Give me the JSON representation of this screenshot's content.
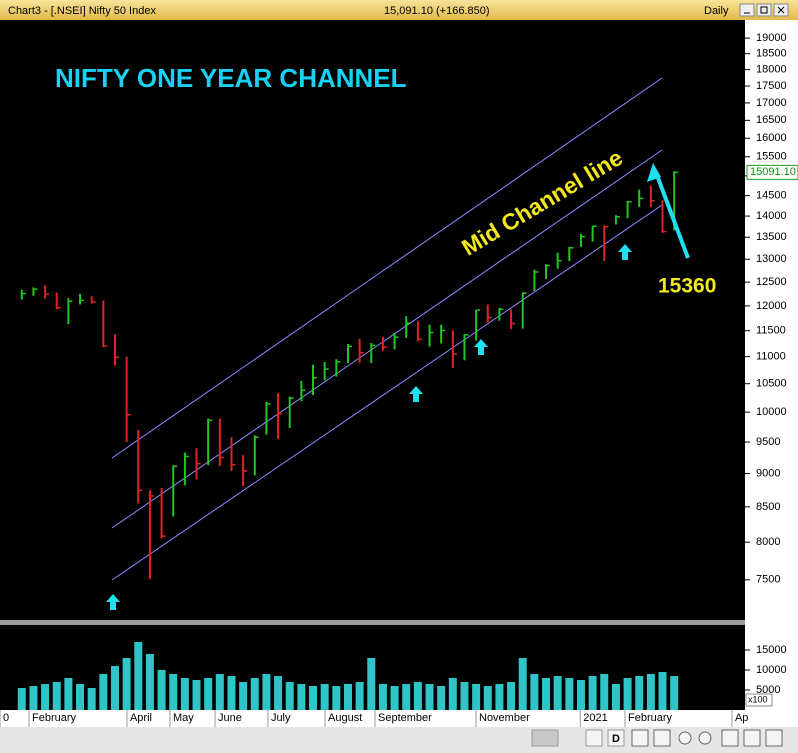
{
  "window": {
    "title": "Chart3 - [.NSEI] Nifty 50 Index",
    "quote": "15,091.10 (+166.850)",
    "period": "Daily",
    "period_button": "D"
  },
  "chart_data": [
    {
      "type": "ohlc",
      "title": "NIFTY ONE YEAR CHANNEL",
      "annotations": [
        "Mid Channel line",
        "15360"
      ],
      "x": [
        0,
        1,
        2,
        3,
        4,
        5,
        6,
        7,
        8,
        9,
        10,
        11,
        12,
        13,
        14,
        15,
        16,
        17,
        18,
        19,
        20,
        21,
        22,
        23,
        24,
        25,
        26,
        27,
        28,
        29,
        30,
        31,
        32,
        33,
        34,
        35,
        36,
        37,
        38,
        39,
        40,
        41,
        42,
        43,
        44,
        45,
        46,
        47,
        48,
        49,
        50,
        51,
        52,
        53,
        54,
        55,
        56
      ],
      "high": [
        12340,
        12390,
        12430,
        12280,
        12160,
        12250,
        12200,
        12110,
        11430,
        11000,
        9700,
        8750,
        8780,
        9130,
        9330,
        9400,
        9890,
        9890,
        9580,
        9290,
        9610,
        10180,
        10330,
        10270,
        10550,
        10850,
        10900,
        10950,
        11240,
        11340,
        11260,
        11380,
        11460,
        11790,
        11690,
        11620,
        11620,
        11510,
        11430,
        11920,
        12030,
        11960,
        11930,
        12280,
        12770,
        12890,
        13150,
        13280,
        13580,
        13770,
        13780,
        14020,
        14370,
        14650,
        14750,
        14390,
        15120
      ],
      "low": [
        12130,
        12210,
        12150,
        11930,
        11630,
        12030,
        12050,
        11180,
        10830,
        9500,
        8550,
        7511,
        8055,
        8360,
        8820,
        8910,
        9130,
        9120,
        9040,
        8810,
        8970,
        9620,
        9550,
        9730,
        10190,
        10300,
        10560,
        10630,
        10880,
        10880,
        10880,
        11110,
        11140,
        11360,
        11290,
        11190,
        11250,
        10790,
        10930,
        11310,
        11660,
        11700,
        11530,
        11540,
        12310,
        12570,
        12790,
        12960,
        13280,
        13400,
        12960,
        13800,
        13950,
        14220,
        14220,
        13600,
        13660
      ],
      "close": [
        12256,
        12352,
        12248,
        11962,
        12098,
        12113,
        12080,
        11202,
        10990,
        9955,
        8745,
        8660,
        8084,
        9112,
        9267,
        9154,
        9860,
        9251,
        9137,
        9040,
        9580,
        10142,
        9972,
        10244,
        10383,
        10607,
        10768,
        10902,
        11194,
        11073,
        11214,
        11178,
        11372,
        11647,
        11333,
        11464,
        11505,
        11050,
        11417,
        11914,
        11762,
        11930,
        11642,
        12264,
        12720,
        12859,
        12969,
        13258,
        13514,
        13760,
        13749,
        13982,
        14347,
        14433,
        14372,
        13634,
        15091
      ],
      "up_color": "#22c722",
      "down_color": "#e02424",
      "log_scale": true,
      "ylim": [
        7000,
        19600
      ],
      "yticks": [
        7500,
        8000,
        8500,
        9000,
        9500,
        10000,
        10500,
        11000,
        11500,
        12000,
        12500,
        13000,
        13500,
        14000,
        14500,
        15000,
        15500,
        16000,
        16500,
        17000,
        17500,
        18000,
        18500,
        19000
      ],
      "xlim": [
        -1.87,
        62.08
      ],
      "xticks": [
        {
          "value": -1.87,
          "label": "0"
        },
        {
          "value": 0.62,
          "label": "February"
        },
        {
          "value": 9.03,
          "label": "April"
        },
        {
          "value": 12.72,
          "label": "May"
        },
        {
          "value": 16.59,
          "label": "June"
        },
        {
          "value": 21.13,
          "label": "July"
        },
        {
          "value": 26.03,
          "label": "August"
        },
        {
          "value": 30.32,
          "label": "September"
        },
        {
          "value": 38.99,
          "label": "November"
        },
        {
          "value": 47.94,
          "label": "2021"
        },
        {
          "value": 51.78,
          "label": "February"
        },
        {
          "value": 60.96,
          "label": "Ap"
        }
      ],
      "last_price": 15091.1,
      "last_price_label": "15091.10"
    },
    {
      "type": "bar",
      "x": [
        0,
        1,
        2,
        3,
        4,
        5,
        6,
        7,
        8,
        9,
        10,
        11,
        12,
        13,
        14,
        15,
        16,
        17,
        18,
        19,
        20,
        21,
        22,
        23,
        24,
        25,
        26,
        27,
        28,
        29,
        30,
        31,
        32,
        33,
        34,
        35,
        36,
        37,
        38,
        39,
        40,
        41,
        42,
        43,
        44,
        45,
        46,
        47,
        48,
        49,
        50,
        51,
        52,
        53,
        54,
        55,
        56
      ],
      "values": [
        5500,
        6000,
        6500,
        7000,
        8000,
        6500,
        5500,
        9000,
        11000,
        13000,
        17000,
        14000,
        10000,
        9000,
        8000,
        7500,
        8000,
        9000,
        8500,
        7000,
        8000,
        9000,
        8500,
        7000,
        6500,
        6000,
        6500,
        6000,
        6500,
        7000,
        13000,
        6500,
        6000,
        6500,
        7000,
        6500,
        6000,
        8000,
        7000,
        6500,
        6000,
        6500,
        7000,
        13000,
        9000,
        8000,
        8500,
        8000,
        7500,
        8500,
        9000,
        6500,
        8000,
        8500,
        9000,
        9500,
        8500
      ],
      "color": "#2fc4c8",
      "xlim": [
        -1.87,
        62.08
      ],
      "ylim": [
        0,
        22500
      ],
      "yticks": [
        5000,
        10000,
        15000
      ],
      "unit_label": "x100"
    }
  ]
}
